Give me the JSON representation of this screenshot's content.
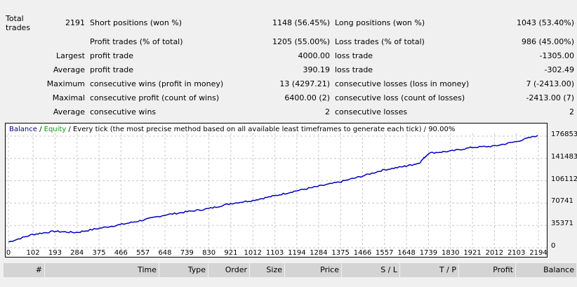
{
  "stats": {
    "row1": {
      "label1": "Total trades",
      "value1": "2191",
      "label2": "Short positions (won %)",
      "value2": "1148 (56.45%)",
      "label3": "Long positions (won %)",
      "value3": "1043 (53.40%)"
    },
    "rows": [
      {
        "prefix": "",
        "label2": "Profit trades (% of total)",
        "value2": "1205 (55.00%)",
        "label3": "Loss trades (% of total)",
        "value3": "986 (45.00%)"
      },
      {
        "prefix": "Largest",
        "label2": "profit trade",
        "value2": "4000.00",
        "label3": "loss trade",
        "value3": "-1305.00"
      },
      {
        "prefix": "Average",
        "label2": "profit trade",
        "value2": "390.19",
        "label3": "loss trade",
        "value3": "-302.49"
      },
      {
        "prefix": "Maximum",
        "label2": "consecutive wins (profit in money)",
        "value2": "13 (4297.21)",
        "label3": "consecutive losses (loss in money)",
        "value3": "7 (-2413.00)"
      },
      {
        "prefix": "Maximal",
        "label2": "consecutive profit (count of wins)",
        "value2": "6400.00 (2)",
        "label3": "consecutive loss (count of losses)",
        "value3": "-2413.00 (7)"
      },
      {
        "prefix": "Average",
        "label2": "consecutive wins",
        "value2": "2",
        "label3": "consecutive losses",
        "value3": "2"
      }
    ]
  },
  "chart": {
    "legend_balance": "Balance",
    "legend_equity": "Equity",
    "legend_rest": " / Every tick (the most precise method based on all available least timeframes to generate each tick) / 90.00%",
    "colors": {
      "balance": "#00008b",
      "equity": "#00a000",
      "line": "#0000c0"
    }
  },
  "chart_data": {
    "type": "line",
    "x_ticks": [
      "0",
      "102",
      "193",
      "284",
      "375",
      "466",
      "557",
      "648",
      "739",
      "830",
      "921",
      "1012",
      "1103",
      "1194",
      "1284",
      "1375",
      "1466",
      "1557",
      "1648",
      "1739",
      "1830",
      "1921",
      "2012",
      "2103",
      "2194"
    ],
    "y_ticks": [
      "0",
      "35371",
      "70741",
      "106112",
      "141483",
      "176853"
    ],
    "ylim": [
      0,
      176853
    ],
    "xlim": [
      0,
      2194
    ],
    "grid": true,
    "series": [
      {
        "name": "Balance",
        "x": [
          0,
          100,
          190,
          280,
          380,
          470,
          560,
          650,
          740,
          830,
          920,
          1012,
          1100,
          1190,
          1280,
          1370,
          1460,
          1550,
          1640,
          1700,
          1740,
          1830,
          1920,
          2010,
          2100,
          2191
        ],
        "values": [
          9000,
          21000,
          26000,
          24000,
          31000,
          37000,
          44000,
          52000,
          57000,
          62000,
          70000,
          75000,
          82000,
          90000,
          97000,
          104000,
          113000,
          123000,
          129000,
          134000,
          150000,
          153000,
          159000,
          161000,
          168000,
          178000
        ]
      }
    ]
  },
  "table": {
    "columns": [
      "#",
      "Time",
      "Type",
      "Order",
      "Size",
      "Price",
      "S / L",
      "T / P",
      "Profit",
      "Balance"
    ]
  }
}
